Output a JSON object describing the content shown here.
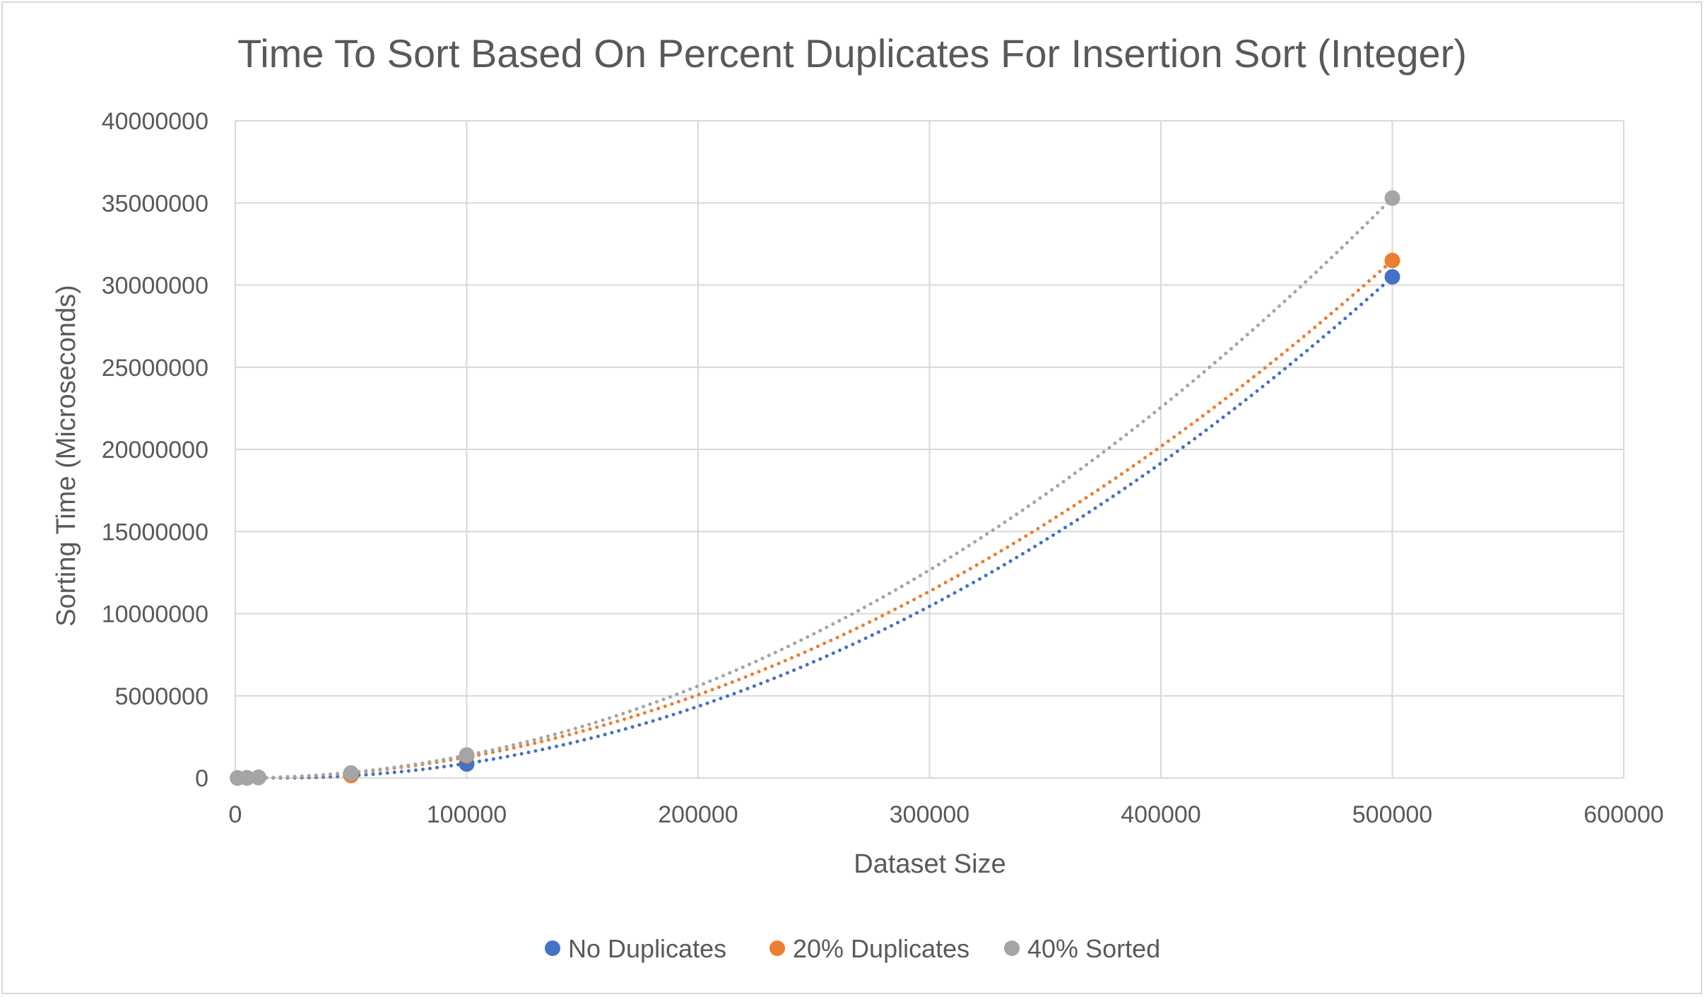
{
  "chart_data": {
    "type": "scatter",
    "title": "Time To Sort Based On Percent Duplicates For Insertion Sort (Integer)",
    "xlabel": "Dataset Size",
    "ylabel": "Sorting Time (Microseconds)",
    "xlim": [
      0,
      600000
    ],
    "ylim": [
      0,
      40000000
    ],
    "xticks": [
      0,
      100000,
      200000,
      300000,
      400000,
      500000,
      600000
    ],
    "yticks": [
      0,
      5000000,
      10000000,
      15000000,
      20000000,
      25000000,
      30000000,
      35000000,
      40000000
    ],
    "grid": true,
    "trendline": "polynomial-2-dotted",
    "legend_position": "bottom",
    "series": [
      {
        "name": "No Duplicates",
        "color": "#4472C4",
        "x": [
          1000,
          5000,
          10000,
          50000,
          100000,
          500000
        ],
        "y": [
          300,
          8000,
          30000,
          200000,
          850000,
          30500000
        ]
      },
      {
        "name": "20% Duplicates",
        "color": "#ED7D31",
        "x": [
          1000,
          5000,
          10000,
          50000,
          100000,
          500000
        ],
        "y": [
          300,
          9000,
          35000,
          150000,
          1350000,
          31500000
        ]
      },
      {
        "name": "40% Sorted",
        "color": "#A5A5A5",
        "x": [
          1000,
          5000,
          10000,
          50000,
          100000,
          500000
        ],
        "y": [
          400,
          9500,
          38000,
          300000,
          1400000,
          35300000
        ]
      }
    ]
  }
}
